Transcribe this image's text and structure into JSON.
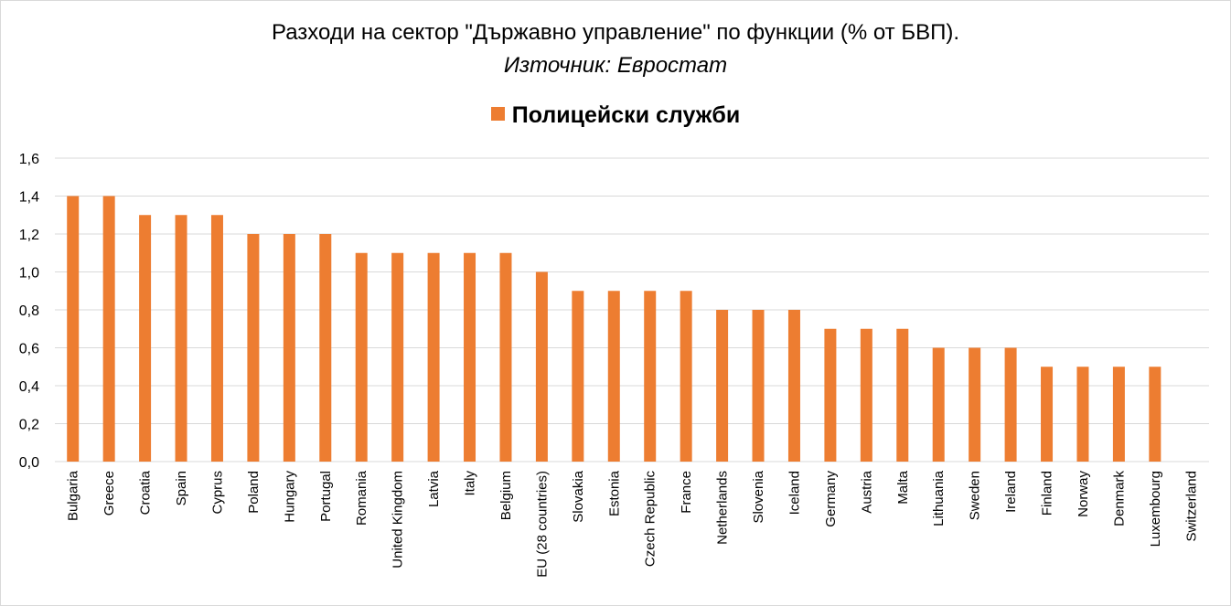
{
  "chart_data": {
    "type": "bar",
    "title": "Разходи на сектор \"Държавно управление\" по функции (% от БВП).",
    "subtitle": "Източник: Евростат",
    "categories": [
      "Bulgaria",
      "Greece",
      "Croatia",
      "Spain",
      "Cyprus",
      "Poland",
      "Hungary",
      "Portugal",
      "Romania",
      "United Kingdom",
      "Latvia",
      "Italy",
      "Belgium",
      "EU (28 countries)",
      "Slovakia",
      "Estonia",
      "Czech Republic",
      "France",
      "Netherlands",
      "Slovenia",
      "Iceland",
      "Germany",
      "Austria",
      "Malta",
      "Lithuania",
      "Sweden",
      "Ireland",
      "Finland",
      "Norway",
      "Denmark",
      "Luxembourg",
      "Switzerland"
    ],
    "series": [
      {
        "name": "Полицейски служби",
        "color": "#ed7d31",
        "values": [
          1.4,
          1.4,
          1.3,
          1.3,
          1.3,
          1.2,
          1.2,
          1.2,
          1.1,
          1.1,
          1.1,
          1.1,
          1.1,
          1.0,
          0.9,
          0.9,
          0.9,
          0.9,
          0.8,
          0.8,
          0.8,
          0.7,
          0.7,
          0.7,
          0.6,
          0.6,
          0.6,
          0.5,
          0.5,
          0.5,
          0.5,
          0
        ]
      }
    ],
    "ylim": [
      0,
      1.6
    ],
    "yticks": [
      "0,0",
      "0,2",
      "0,4",
      "0,6",
      "0,8",
      "1,0",
      "1,2",
      "1,4",
      "1,6"
    ],
    "grid": true,
    "legend_position": "top",
    "grid_color": "#d9d9d9"
  }
}
